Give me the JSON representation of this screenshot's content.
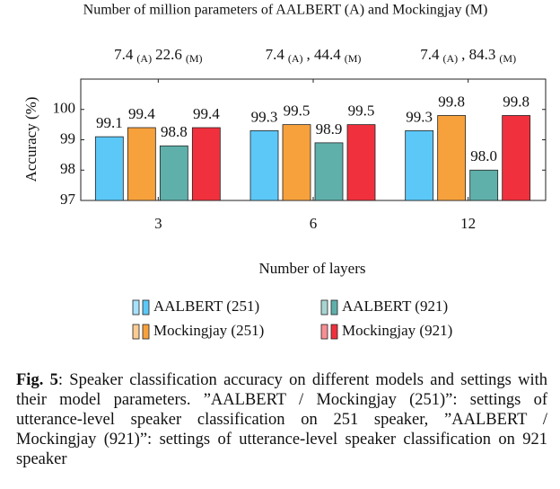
{
  "chart_data": {
    "type": "bar",
    "top_axis_title": "Number of million parameters of AALBERT (A) and Mockingjay (M)",
    "top_labels": [
      [
        "7.4",
        "(A)",
        "22.6",
        "(M)"
      ],
      [
        "7.4",
        "(A)",
        ", 44.4",
        "(M)"
      ],
      [
        "7.4",
        "(A)",
        ", 84.3",
        "(M)"
      ]
    ],
    "y_label": "Accuracy (%)",
    "x_label": "Number of layers",
    "categories": [
      "3",
      "6",
      "12"
    ],
    "series": [
      {
        "name": "AALBERT (251)",
        "color": "#5cc8f7",
        "values": [
          99.1,
          99.3,
          99.3
        ]
      },
      {
        "name": "Mockingjay (251)",
        "color": "#f7a13c",
        "values": [
          99.4,
          99.5,
          99.8
        ]
      },
      {
        "name": "AALBERT (921)",
        "color": "#5fb0ab",
        "values": [
          98.8,
          98.9,
          98.0
        ],
        "value_labels": [
          "98.8",
          "98.9",
          "98.0"
        ]
      },
      {
        "name": "Mockingjay (921)",
        "color": "#f0313d",
        "values": [
          99.4,
          99.5,
          99.8
        ]
      }
    ],
    "ylim": [
      97,
      101
    ],
    "yticks": [
      97,
      98,
      99,
      100
    ]
  },
  "caption": {
    "label": "Fig. 5",
    "text": ": Speaker classification accuracy on different models and settings with their model parameters. ”AALBERT / Mockingjay (251)”: settings of utterance-level speaker classification on 251 speaker, ”AALBERT / Mockingjay (921)”: settings of utterance-level speaker classification on 921 speaker"
  }
}
